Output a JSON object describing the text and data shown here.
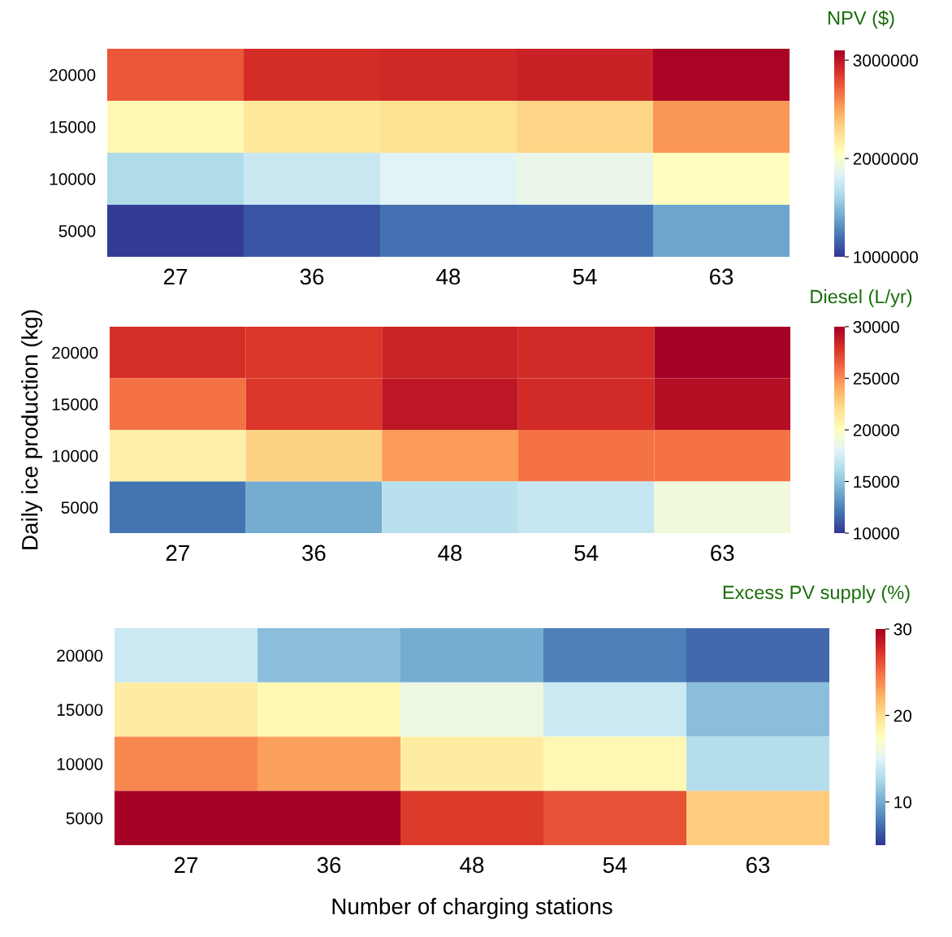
{
  "chart_data": [
    {
      "type": "heatmap",
      "clabel": "NPV ($)",
      "categories": [
        "27",
        "36",
        "48",
        "54",
        "63"
      ],
      "y_categories": [
        "20000",
        "15000",
        "10000",
        "5000"
      ],
      "cells": [
        [
          2750000,
          2900000,
          2920000,
          2950000,
          3080000
        ],
        [
          2100000,
          2200000,
          2250000,
          2300000,
          2550000
        ],
        [
          1650000,
          1750000,
          1850000,
          1900000,
          2050000
        ],
        [
          1020000,
          1100000,
          1200000,
          1200000,
          1400000
        ]
      ],
      "clim": [
        1000000,
        3100000
      ],
      "cticks": [
        1000000,
        2000000,
        3000000
      ]
    },
    {
      "type": "heatmap",
      "clabel": "Diesel (L/yr)",
      "ylabel": "Daily ice production (kg)",
      "categories": [
        "27",
        "36",
        "48",
        "54",
        "63"
      ],
      "y_categories": [
        "20000",
        "15000",
        "10000",
        "5000"
      ],
      "cells": [
        [
          28000,
          27800,
          28500,
          28200,
          30000
        ],
        [
          25800,
          27800,
          29000,
          28200,
          29300
        ],
        [
          21000,
          22500,
          24500,
          25800,
          25800
        ],
        [
          12000,
          14000,
          16500,
          17000,
          19000
        ]
      ],
      "clim": [
        10000,
        30000
      ],
      "cticks": [
        10000,
        15000,
        20000,
        25000,
        30000
      ]
    },
    {
      "type": "heatmap",
      "clabel": "Excess PV supply (%)",
      "xlabel": "Number of charging stations",
      "categories": [
        "27",
        "36",
        "48",
        "54",
        "63"
      ],
      "y_categories": [
        "20000",
        "15000",
        "10000",
        "5000"
      ],
      "cells": [
        [
          14,
          11,
          10,
          8,
          7
        ],
        [
          19,
          18,
          16,
          14,
          11
        ],
        [
          24,
          23,
          19,
          18,
          13
        ],
        [
          30,
          30,
          27,
          26,
          21
        ]
      ],
      "clim": [
        5,
        30
      ],
      "cticks": [
        10,
        20,
        30
      ]
    }
  ]
}
